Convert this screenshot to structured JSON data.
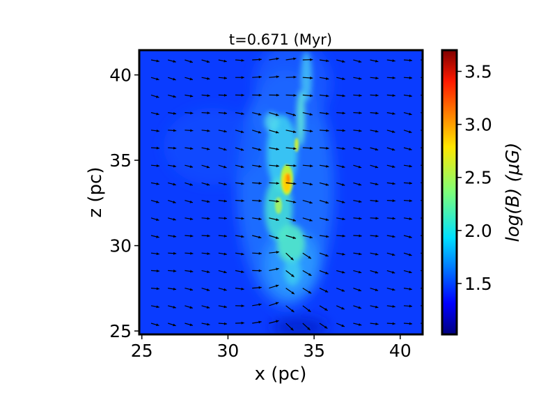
{
  "chart_data": {
    "type": "heatmap",
    "title": "t=0.671 (Myr)",
    "xlabel": "x (pc)",
    "ylabel": "z (pc)",
    "xlim": [
      24.85,
      41.3
    ],
    "ylim": [
      24.8,
      41.45
    ],
    "x_ticks": [
      25,
      30,
      35,
      40
    ],
    "y_ticks": [
      25,
      30,
      35,
      40
    ],
    "x_tick_labels": [
      "25",
      "30",
      "35",
      "40"
    ],
    "y_tick_labels": [
      "25",
      "30",
      "35",
      "40"
    ],
    "colorbar": {
      "label": "log(B) (μG)",
      "range": [
        1.02,
        3.7
      ],
      "ticks": [
        1.5,
        2.0,
        2.5,
        3.0,
        3.5
      ],
      "tick_labels": [
        "1.5",
        "2.0",
        "2.5",
        "3.0",
        "3.5"
      ],
      "colormap": "jet"
    },
    "field_description": "Magnetic field strength map with overlaid black vector arrows (mostly pointing rightward); a bright filament of enhanced field runs roughly vertically near x≈32–35 pc, peaking near (33.5, 33.5) pc.",
    "background_log_b": 1.45,
    "filament_peak_log_b": 3.1,
    "colors": {
      "frame": "#000000",
      "arrow": "#000000",
      "background_field": "#0a3cff"
    }
  }
}
